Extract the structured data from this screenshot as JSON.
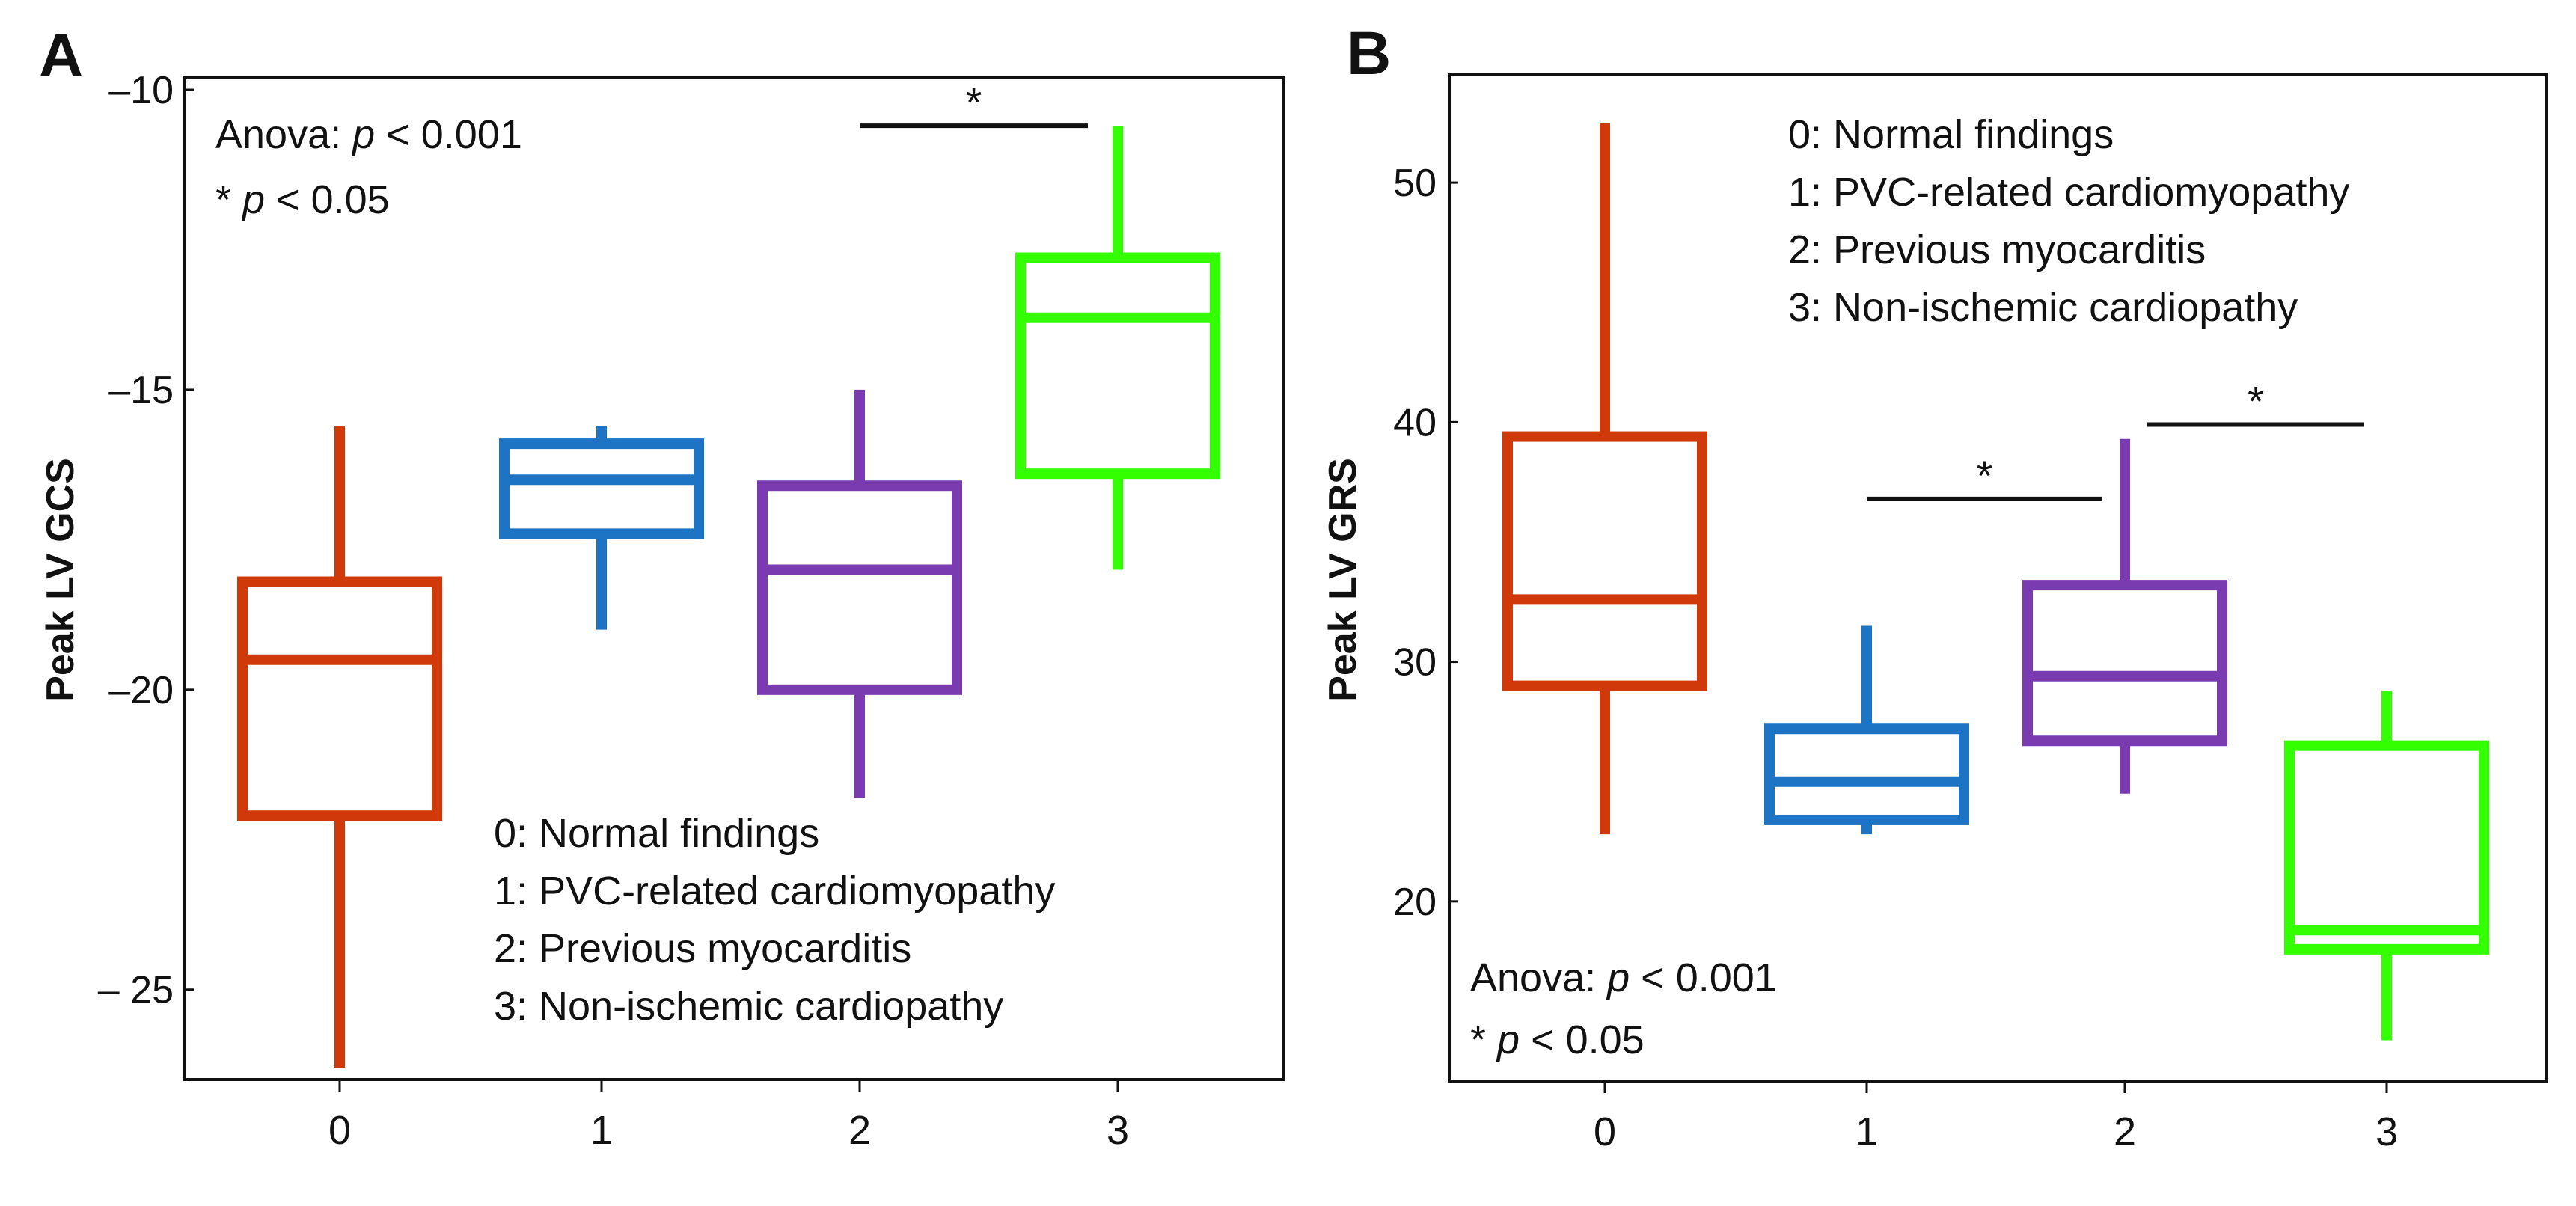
{
  "chart_data": [
    {
      "panel": "A",
      "type": "box",
      "ylabel": "Peak LV GCS",
      "ylim": [
        -26.5,
        -9.8
      ],
      "categories": [
        "0",
        "1",
        "2",
        "3"
      ],
      "yticks": [
        {
          "value": -10,
          "label": "–10"
        },
        {
          "value": -15,
          "label": "–15"
        },
        {
          "value": -20,
          "label": "–20"
        },
        {
          "value": -25,
          "label": "– 25"
        }
      ],
      "boxes": [
        {
          "category": "0",
          "color": "#D03A0B",
          "min": -26.3,
          "q1": -22.1,
          "median": -19.5,
          "q3": -18.2,
          "max": -15.6
        },
        {
          "category": "1",
          "color": "#1E74C4",
          "min": -19.0,
          "q1": -17.4,
          "median": -16.5,
          "q3": -15.9,
          "max": -15.6
        },
        {
          "category": "2",
          "color": "#7A3BB0",
          "min": -21.8,
          "q1": -20.0,
          "median": -18.0,
          "q3": -16.6,
          "max": -15.0
        },
        {
          "category": "3",
          "color": "#33FF00",
          "min": -18.0,
          "q1": -16.4,
          "median": -13.8,
          "q3": -12.8,
          "max": -10.6
        }
      ],
      "significance": [
        {
          "from": "2",
          "to": "3",
          "y": -10.6,
          "label": "*"
        }
      ],
      "stats_text": {
        "anova_prefix": "Anova: ",
        "anova_p": "p",
        "anova_value": " < 0.001",
        "sig_star": "* ",
        "sig_p": "p",
        "sig_value": " < 0.05"
      },
      "legend": [
        "0: Normal findings",
        "1: PVC-related cardiomyopathy",
        "2: Previous myocarditis",
        "3: Non-ischemic cardiopathy"
      ],
      "legend_position": "bottom-right",
      "stats_position": "top-left"
    },
    {
      "panel": "B",
      "type": "box",
      "ylabel": "Peak LV GRS",
      "ylim": [
        12.5,
        54.5
      ],
      "categories": [
        "0",
        "1",
        "2",
        "3"
      ],
      "yticks": [
        {
          "value": 20,
          "label": "20"
        },
        {
          "value": 30,
          "label": "30"
        },
        {
          "value": 40,
          "label": "40"
        },
        {
          "value": 50,
          "label": "50"
        }
      ],
      "boxes": [
        {
          "category": "0",
          "color": "#D03A0B",
          "min": 22.8,
          "q1": 29.0,
          "median": 32.6,
          "q3": 39.4,
          "max": 52.5
        },
        {
          "category": "1",
          "color": "#1E74C4",
          "min": 22.8,
          "q1": 23.4,
          "median": 25.0,
          "q3": 27.2,
          "max": 31.5
        },
        {
          "category": "2",
          "color": "#7A3BB0",
          "min": 24.5,
          "q1": 26.7,
          "median": 29.4,
          "q3": 33.2,
          "max": 39.3
        },
        {
          "category": "3",
          "color": "#33FF00",
          "min": 14.2,
          "q1": 18.0,
          "median": 18.8,
          "q3": 26.5,
          "max": 28.8
        }
      ],
      "significance": [
        {
          "from": "1",
          "to": "2",
          "y": 36.8,
          "label": "*"
        },
        {
          "from": "2",
          "to": "3",
          "y": 39.9,
          "label": "*"
        }
      ],
      "stats_text": {
        "anova_prefix": "Anova: ",
        "anova_p": "p",
        "anova_value": " < 0.001",
        "sig_star": "* ",
        "sig_p": "p",
        "sig_value": " < 0.05"
      },
      "legend": [
        "0: Normal findings",
        "1: PVC-related cardiomyopathy",
        "2: Previous myocarditis",
        "3: Non-ischemic cardiopathy"
      ],
      "legend_position": "top-right",
      "stats_position": "bottom-left"
    }
  ]
}
